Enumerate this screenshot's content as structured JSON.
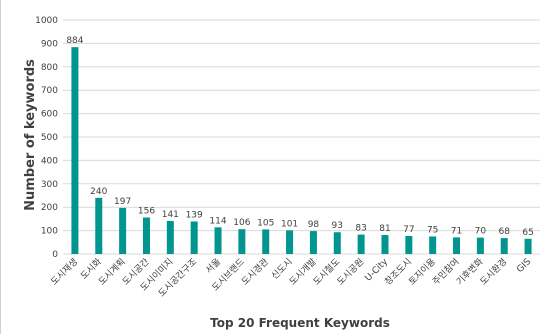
{
  "chart_data": {
    "type": "bar",
    "title": "Top 20 Frequent Keywords",
    "xlabel": "",
    "ylabel": "Number of keywords",
    "ylim": [
      0,
      1000
    ],
    "yticks": [
      0,
      100,
      200,
      300,
      400,
      500,
      600,
      700,
      800,
      900,
      1000
    ],
    "grid": true,
    "bar_color": "#00968f",
    "categories": [
      "도시재생",
      "도시화",
      "도시계획",
      "도시공간",
      "도시이미지",
      "도시공간구조",
      "서울",
      "도시브랜드",
      "도시경관",
      "신도시",
      "도시개발",
      "도시철도",
      "도시공원",
      "U-City",
      "창조도시",
      "토지이용",
      "주민참여",
      "기후변화",
      "도시환경",
      "GIS"
    ],
    "values": [
      884,
      240,
      197,
      156,
      141,
      139,
      114,
      106,
      105,
      101,
      98,
      93,
      83,
      81,
      77,
      75,
      71,
      70,
      68,
      65
    ]
  }
}
